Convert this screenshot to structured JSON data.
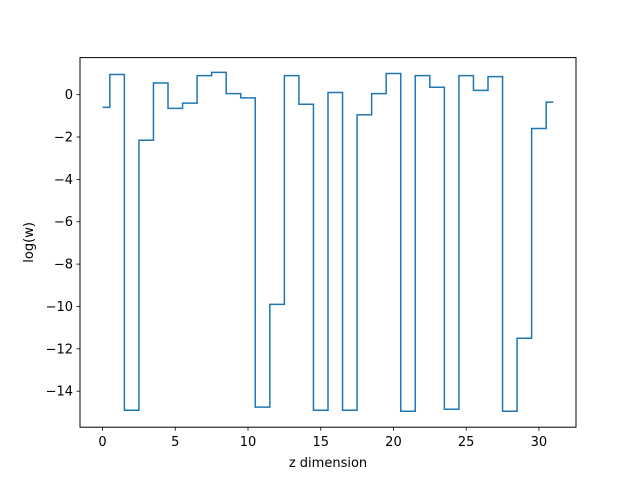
{
  "chart_data": {
    "type": "line",
    "drawstyle": "steps-mid",
    "title": "",
    "xlabel": "z dimension",
    "ylabel": "log(w)",
    "xlim": [
      -1.55,
      32.55
    ],
    "ylim": [
      -15.7,
      1.75
    ],
    "xticks": [
      0,
      5,
      10,
      15,
      20,
      25,
      30
    ],
    "xtick_labels": [
      "0",
      "5",
      "10",
      "15",
      "20",
      "25",
      "30"
    ],
    "yticks": [
      0,
      -2,
      -4,
      -6,
      -8,
      -10,
      -12,
      -14
    ],
    "ytick_labels": [
      "0",
      "−2",
      "−4",
      "−6",
      "−8",
      "−10",
      "−12",
      "−14"
    ],
    "grid": false,
    "series": [
      {
        "color": "#1f77b4",
        "x": [
          0,
          1,
          2,
          3,
          4,
          5,
          6,
          7,
          8,
          9,
          10,
          11,
          12,
          13,
          14,
          15,
          16,
          17,
          18,
          19,
          20,
          21,
          22,
          23,
          24,
          25,
          26,
          27,
          28,
          29,
          30,
          31
        ],
        "y": [
          -0.6,
          0.95,
          -14.9,
          -2.15,
          0.55,
          -0.65,
          -0.4,
          0.9,
          1.05,
          0.05,
          -0.15,
          -14.75,
          -9.9,
          0.9,
          -0.45,
          -14.9,
          0.1,
          -14.9,
          -0.95,
          0.05,
          1.0,
          -14.95,
          0.9,
          0.35,
          -14.85,
          0.9,
          0.2,
          0.85,
          -14.95,
          -11.5,
          -1.6,
          -0.35
        ]
      }
    ]
  }
}
